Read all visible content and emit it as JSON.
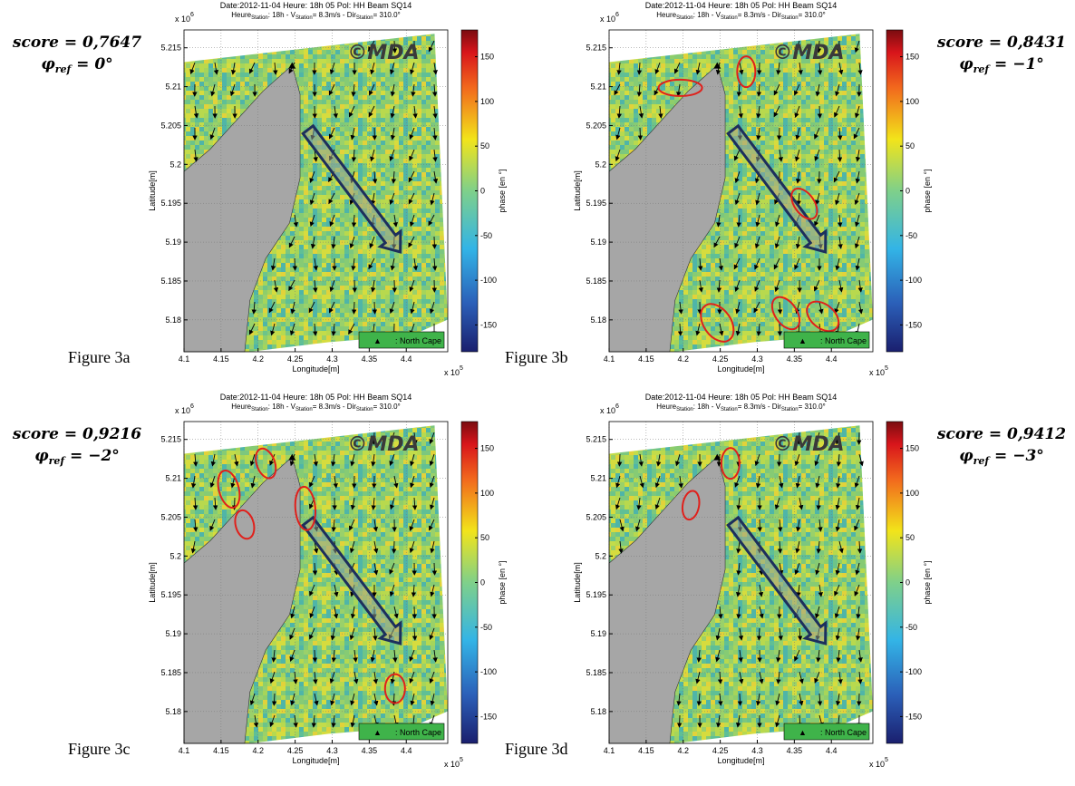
{
  "header": {
    "line1": "Date:2012-11-04    Heure: 18h 05   Pol: HH   Beam SQ14",
    "line2": [
      "Heure",
      "Station",
      ":    18h   -   V",
      "Station",
      "=  8.3m/s   -   Dir",
      "Station",
      "= 310.0°"
    ]
  },
  "axes": {
    "xlim": [
      4.1,
      4.456
    ],
    "xticks": [
      4.1,
      4.15,
      4.2,
      4.25,
      4.3,
      4.35,
      4.4
    ],
    "ylim": [
      5.1759,
      5.2173
    ],
    "yticks": [
      5.18,
      5.185,
      5.19,
      5.195,
      5.2,
      5.205,
      5.21,
      5.215
    ],
    "xlabel": "Longitude[m]",
    "ylabel": "Latitude[m]",
    "x_multiplier": "x 10",
    "x_exponent": "5",
    "y_multiplier": "x 10",
    "y_exponent": "6"
  },
  "colorbar": {
    "lim": [
      -180,
      180
    ],
    "ticks": [
      -150,
      -100,
      -50,
      0,
      50,
      100,
      150
    ],
    "label": "phase [en °]"
  },
  "watermark": "©MDA",
  "legend": {
    "marker": "▲",
    "label": ": North Cape"
  },
  "phi_symbol": "φ",
  "phi_sub": "ref",
  "panels": [
    {
      "figure_label": "Figure 3a",
      "score": "score = 0,7647",
      "phi_value": " = 0°"
    },
    {
      "figure_label": "Figure 3b",
      "score": "score = 0,8431",
      "phi_value": " = −1°"
    },
    {
      "figure_label": "Figure 3c",
      "score": "score = 0,9216",
      "phi_value": " = −2°"
    },
    {
      "figure_label": "Figure 3d",
      "score": "score = 0,9412",
      "phi_value": " = −3°"
    }
  ]
}
